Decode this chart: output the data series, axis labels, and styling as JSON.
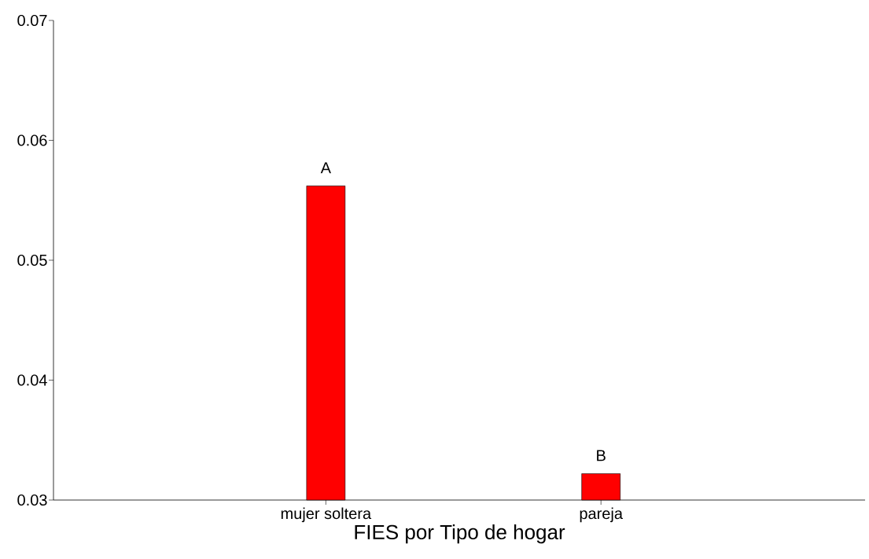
{
  "chart_data": {
    "type": "bar",
    "xlabel": "FIES por Tipo de hogar",
    "categories": [
      "mujer soltera",
      "pareja"
    ],
    "values": [
      0.0562,
      0.0322
    ],
    "color": "#ff0000",
    "ylim": [
      0.03,
      0.07
    ],
    "yticks": [
      0.03,
      0.04,
      0.05,
      0.06,
      0.07
    ],
    "grid": false,
    "annotations": [
      {
        "text": "A",
        "x": "mujer soltera",
        "y": 0.0562
      },
      {
        "text": "B",
        "x": "pareja",
        "y": 0.0322
      }
    ]
  }
}
